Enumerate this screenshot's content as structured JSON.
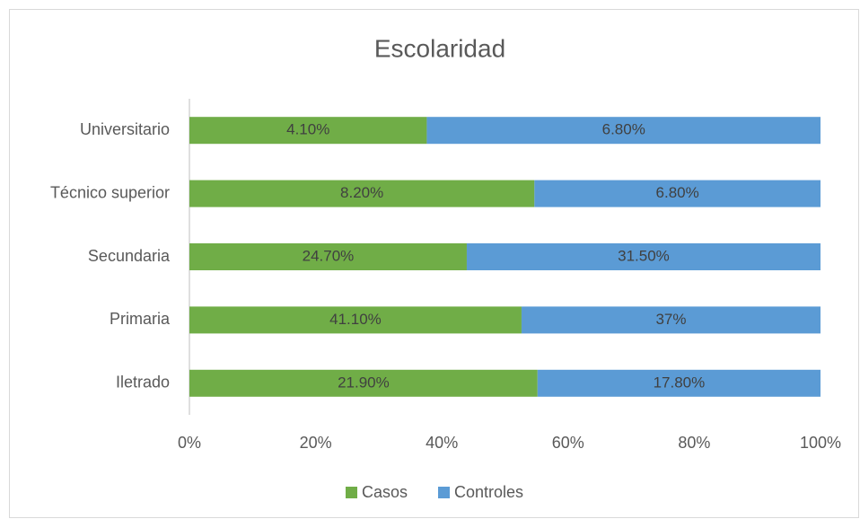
{
  "chart_data": {
    "type": "bar",
    "orientation": "horizontal",
    "stacking": "percent",
    "title": "Escolaridad",
    "categories": [
      "Universitario",
      "Técnico superior",
      "Secundaria",
      "Primaria",
      "Iletrado"
    ],
    "series": [
      {
        "name": "Casos",
        "color": "#70ad47",
        "values": [
          4.1,
          8.2,
          24.7,
          41.1,
          21.9
        ],
        "value_labels": [
          "4.10%",
          "8.20%",
          "24.70%",
          "41.10%",
          "21.90%"
        ]
      },
      {
        "name": "Controles",
        "color": "#5b9bd5",
        "values": [
          6.8,
          6.8,
          31.5,
          37,
          17.8
        ],
        "value_labels": [
          "6.80%",
          "6.80%",
          "31.50%",
          "37%",
          "17.80%"
        ]
      }
    ],
    "xlim": [
      0,
      100
    ],
    "xticks": [
      {
        "value": 0,
        "label": "0%"
      },
      {
        "value": 20,
        "label": "20%"
      },
      {
        "value": 40,
        "label": "40%"
      },
      {
        "value": 60,
        "label": "60%"
      },
      {
        "value": 80,
        "label": "80%"
      },
      {
        "value": 100,
        "label": "100%"
      }
    ],
    "grid": false,
    "legend": "bottom"
  }
}
